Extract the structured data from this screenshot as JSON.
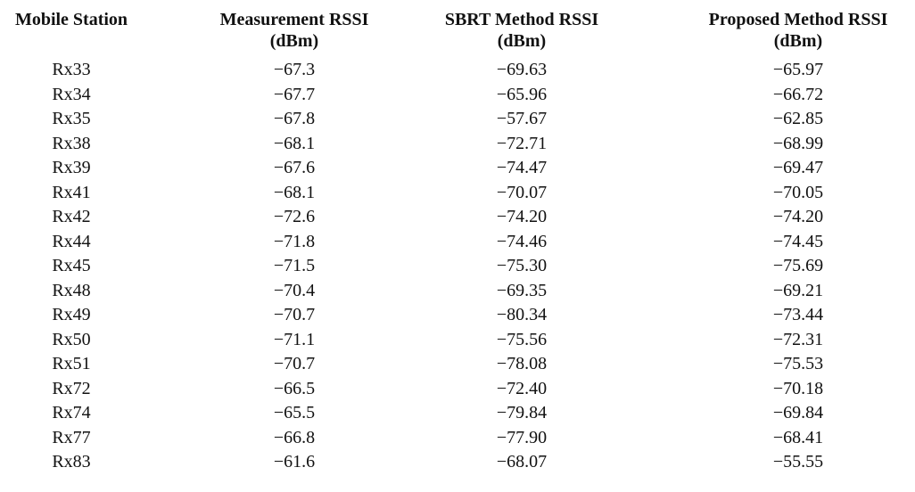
{
  "table": {
    "header": [
      [
        "Mobile Station"
      ],
      [
        "Measurement RSSI",
        "(dBm)"
      ],
      [
        "SBRT Method RSSI",
        "(dBm)"
      ],
      [
        "Proposed Method RSSI",
        "(dBm)"
      ]
    ],
    "rows": [
      [
        "Rx33",
        "−67.3",
        "−69.63",
        "−65.97"
      ],
      [
        "Rx34",
        "−67.7",
        "−65.96",
        "−66.72"
      ],
      [
        "Rx35",
        "−67.8",
        "−57.67",
        "−62.85"
      ],
      [
        "Rx38",
        "−68.1",
        "−72.71",
        "−68.99"
      ],
      [
        "Rx39",
        "−67.6",
        "−74.47",
        "−69.47"
      ],
      [
        "Rx41",
        "−68.1",
        "−70.07",
        "−70.05"
      ],
      [
        "Rx42",
        "−72.6",
        "−74.20",
        "−74.20"
      ],
      [
        "Rx44",
        "−71.8",
        "−74.46",
        "−74.45"
      ],
      [
        "Rx45",
        "−71.5",
        "−75.30",
        "−75.69"
      ],
      [
        "Rx48",
        "−70.4",
        "−69.35",
        "−69.21"
      ],
      [
        "Rx49",
        "−70.7",
        "−80.34",
        "−73.44"
      ],
      [
        "Rx50",
        "−71.1",
        "−75.56",
        "−72.31"
      ],
      [
        "Rx51",
        "−70.7",
        "−78.08",
        "−75.53"
      ],
      [
        "Rx72",
        "−66.5",
        "−72.40",
        "−70.18"
      ],
      [
        "Rx74",
        "−65.5",
        "−79.84",
        "−69.84"
      ],
      [
        "Rx77",
        "−66.8",
        "−77.90",
        "−68.41"
      ],
      [
        "Rx83",
        "−61.6",
        "−68.07",
        "−55.55"
      ]
    ]
  }
}
